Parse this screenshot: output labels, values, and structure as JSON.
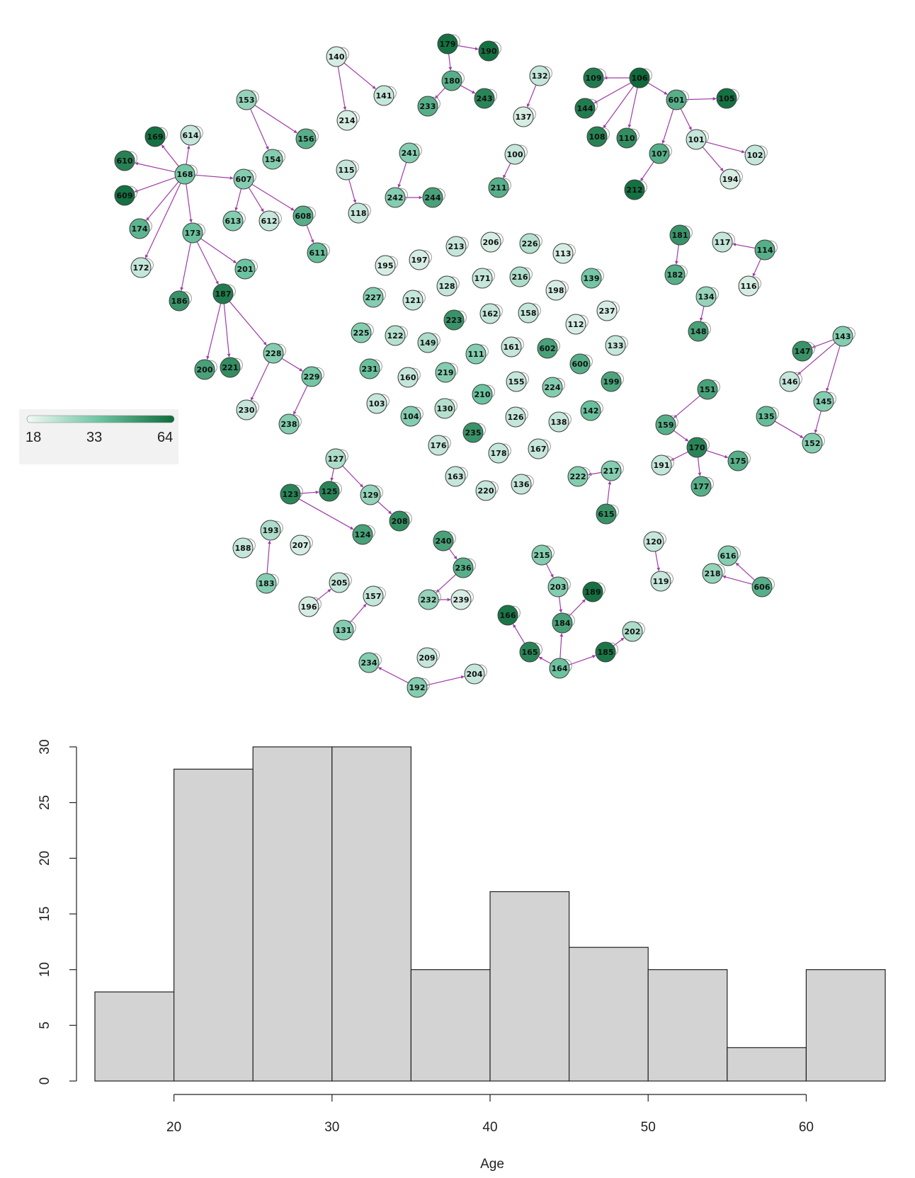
{
  "network": {
    "colors": {
      "low": "#e6f3ef",
      "mid": "#6cc3a0",
      "high": "#0e6b3a",
      "edge": "#a03aa8",
      "node_border": "#3d3d3d"
    },
    "legend": {
      "min": "18",
      "mid": "33",
      "max": "64"
    },
    "nodes": [
      {
        "id": "140",
        "v": 20
      },
      {
        "id": "141",
        "v": 22
      },
      {
        "id": "214",
        "v": 20
      },
      {
        "id": "179",
        "v": 62
      },
      {
        "id": "190",
        "v": 62
      },
      {
        "id": "180",
        "v": 40
      },
      {
        "id": "233",
        "v": 40
      },
      {
        "id": "243",
        "v": 55
      },
      {
        "id": "132",
        "v": 22
      },
      {
        "id": "137",
        "v": 20
      },
      {
        "id": "106",
        "v": 64
      },
      {
        "id": "109",
        "v": 58
      },
      {
        "id": "144",
        "v": 58
      },
      {
        "id": "108",
        "v": 56
      },
      {
        "id": "110",
        "v": 52
      },
      {
        "id": "601",
        "v": 40
      },
      {
        "id": "105",
        "v": 62
      },
      {
        "id": "101",
        "v": 22
      },
      {
        "id": "102",
        "v": 22
      },
      {
        "id": "194",
        "v": 20
      },
      {
        "id": "107",
        "v": 40
      },
      {
        "id": "212",
        "v": 62
      },
      {
        "id": "153",
        "v": 28
      },
      {
        "id": "156",
        "v": 40
      },
      {
        "id": "154",
        "v": 30
      },
      {
        "id": "169",
        "v": 62
      },
      {
        "id": "614",
        "v": 22
      },
      {
        "id": "610",
        "v": 56
      },
      {
        "id": "168",
        "v": 32
      },
      {
        "id": "609",
        "v": 62
      },
      {
        "id": "607",
        "v": 30
      },
      {
        "id": "613",
        "v": 30
      },
      {
        "id": "612",
        "v": 22
      },
      {
        "id": "608",
        "v": 40
      },
      {
        "id": "611",
        "v": 35
      },
      {
        "id": "174",
        "v": 38
      },
      {
        "id": "173",
        "v": 34
      },
      {
        "id": "172",
        "v": 22
      },
      {
        "id": "201",
        "v": 33
      },
      {
        "id": "186",
        "v": 50
      },
      {
        "id": "187",
        "v": 58
      },
      {
        "id": "200",
        "v": 45
      },
      {
        "id": "221",
        "v": 52
      },
      {
        "id": "228",
        "v": 30
      },
      {
        "id": "229",
        "v": 32
      },
      {
        "id": "230",
        "v": 22
      },
      {
        "id": "238",
        "v": 30
      },
      {
        "id": "115",
        "v": 22
      },
      {
        "id": "118",
        "v": 22
      },
      {
        "id": "241",
        "v": 30
      },
      {
        "id": "242",
        "v": 30
      },
      {
        "id": "244",
        "v": 45
      },
      {
        "id": "100",
        "v": 22
      },
      {
        "id": "211",
        "v": 40
      },
      {
        "id": "181",
        "v": 50
      },
      {
        "id": "182",
        "v": 40
      },
      {
        "id": "117",
        "v": 22
      },
      {
        "id": "114",
        "v": 40
      },
      {
        "id": "116",
        "v": 20
      },
      {
        "id": "134",
        "v": 28
      },
      {
        "id": "148",
        "v": 45
      },
      {
        "id": "195",
        "v": 20
      },
      {
        "id": "197",
        "v": 20
      },
      {
        "id": "213",
        "v": 22
      },
      {
        "id": "206",
        "v": 20
      },
      {
        "id": "226",
        "v": 24
      },
      {
        "id": "113",
        "v": 20
      },
      {
        "id": "227",
        "v": 30
      },
      {
        "id": "121",
        "v": 22
      },
      {
        "id": "128",
        "v": 22
      },
      {
        "id": "171",
        "v": 22
      },
      {
        "id": "216",
        "v": 25
      },
      {
        "id": "198",
        "v": 20
      },
      {
        "id": "139",
        "v": 32
      },
      {
        "id": "162",
        "v": 22
      },
      {
        "id": "158",
        "v": 22
      },
      {
        "id": "237",
        "v": 20
      },
      {
        "id": "223",
        "v": 50
      },
      {
        "id": "225",
        "v": 30
      },
      {
        "id": "122",
        "v": 24
      },
      {
        "id": "149",
        "v": 25
      },
      {
        "id": "111",
        "v": 30
      },
      {
        "id": "161",
        "v": 22
      },
      {
        "id": "602",
        "v": 45
      },
      {
        "id": "112",
        "v": 20
      },
      {
        "id": "133",
        "v": 22
      },
      {
        "id": "231",
        "v": 34
      },
      {
        "id": "160",
        "v": 22
      },
      {
        "id": "219",
        "v": 30
      },
      {
        "id": "210",
        "v": 33
      },
      {
        "id": "155",
        "v": 22
      },
      {
        "id": "224",
        "v": 30
      },
      {
        "id": "600",
        "v": 40
      },
      {
        "id": "199",
        "v": 44
      },
      {
        "id": "103",
        "v": 22
      },
      {
        "id": "104",
        "v": 30
      },
      {
        "id": "130",
        "v": 24
      },
      {
        "id": "126",
        "v": 22
      },
      {
        "id": "138",
        "v": 22
      },
      {
        "id": "142",
        "v": 34
      },
      {
        "id": "176",
        "v": 22
      },
      {
        "id": "235",
        "v": 50
      },
      {
        "id": "178",
        "v": 22
      },
      {
        "id": "167",
        "v": 22
      },
      {
        "id": "163",
        "v": 22
      },
      {
        "id": "220",
        "v": 22
      },
      {
        "id": "136",
        "v": 22
      },
      {
        "id": "143",
        "v": 30
      },
      {
        "id": "147",
        "v": 50
      },
      {
        "id": "146",
        "v": 22
      },
      {
        "id": "145",
        "v": 30
      },
      {
        "id": "135",
        "v": 35
      },
      {
        "id": "152",
        "v": 30
      },
      {
        "id": "151",
        "v": 45
      },
      {
        "id": "159",
        "v": 40
      },
      {
        "id": "170",
        "v": 55
      },
      {
        "id": "191",
        "v": 22
      },
      {
        "id": "175",
        "v": 40
      },
      {
        "id": "177",
        "v": 40
      },
      {
        "id": "222",
        "v": 30
      },
      {
        "id": "217",
        "v": 30
      },
      {
        "id": "615",
        "v": 50
      },
      {
        "id": "127",
        "v": 25
      },
      {
        "id": "123",
        "v": 55
      },
      {
        "id": "125",
        "v": 55
      },
      {
        "id": "129",
        "v": 28
      },
      {
        "id": "208",
        "v": 52
      },
      {
        "id": "124",
        "v": 45
      },
      {
        "id": "193",
        "v": 25
      },
      {
        "id": "188",
        "v": 22
      },
      {
        "id": "207",
        "v": 20
      },
      {
        "id": "183",
        "v": 30
      },
      {
        "id": "205",
        "v": 22
      },
      {
        "id": "196",
        "v": 20
      },
      {
        "id": "157",
        "v": 22
      },
      {
        "id": "131",
        "v": 30
      },
      {
        "id": "240",
        "v": 45
      },
      {
        "id": "236",
        "v": 40
      },
      {
        "id": "232",
        "v": 28
      },
      {
        "id": "239",
        "v": 20
      },
      {
        "id": "215",
        "v": 30
      },
      {
        "id": "203",
        "v": 30
      },
      {
        "id": "189",
        "v": 62
      },
      {
        "id": "184",
        "v": 45
      },
      {
        "id": "166",
        "v": 60
      },
      {
        "id": "165",
        "v": 55
      },
      {
        "id": "164",
        "v": 33
      },
      {
        "id": "185",
        "v": 60
      },
      {
        "id": "202",
        "v": 25
      },
      {
        "id": "234",
        "v": 30
      },
      {
        "id": "209",
        "v": 22
      },
      {
        "id": "192",
        "v": 30
      },
      {
        "id": "204",
        "v": 22
      },
      {
        "id": "120",
        "v": 22
      },
      {
        "id": "119",
        "v": 22
      },
      {
        "id": "616",
        "v": 30
      },
      {
        "id": "218",
        "v": 28
      },
      {
        "id": "606",
        "v": 40
      }
    ],
    "edges": [
      [
        "140",
        "141"
      ],
      [
        "140",
        "214"
      ],
      [
        "179",
        "190"
      ],
      [
        "179",
        "180"
      ],
      [
        "180",
        "233"
      ],
      [
        "180",
        "243"
      ],
      [
        "132",
        "137"
      ],
      [
        "106",
        "109"
      ],
      [
        "106",
        "144"
      ],
      [
        "106",
        "108"
      ],
      [
        "106",
        "110"
      ],
      [
        "106",
        "601"
      ],
      [
        "601",
        "105"
      ],
      [
        "601",
        "101"
      ],
      [
        "601",
        "107"
      ],
      [
        "101",
        "102"
      ],
      [
        "101",
        "194"
      ],
      [
        "107",
        "212"
      ],
      [
        "153",
        "156"
      ],
      [
        "153",
        "154"
      ],
      [
        "168",
        "169"
      ],
      [
        "168",
        "614"
      ],
      [
        "168",
        "610"
      ],
      [
        "168",
        "609"
      ],
      [
        "168",
        "607"
      ],
      [
        "168",
        "174"
      ],
      [
        "168",
        "172"
      ],
      [
        "168",
        "173"
      ],
      [
        "607",
        "613"
      ],
      [
        "607",
        "612"
      ],
      [
        "607",
        "608"
      ],
      [
        "608",
        "611"
      ],
      [
        "173",
        "201"
      ],
      [
        "173",
        "186"
      ],
      [
        "173",
        "187"
      ],
      [
        "187",
        "200"
      ],
      [
        "187",
        "221"
      ],
      [
        "187",
        "228"
      ],
      [
        "228",
        "230"
      ],
      [
        "228",
        "229"
      ],
      [
        "229",
        "238"
      ],
      [
        "115",
        "118"
      ],
      [
        "241",
        "242"
      ],
      [
        "242",
        "244"
      ],
      [
        "100",
        "211"
      ],
      [
        "181",
        "182"
      ],
      [
        "114",
        "117"
      ],
      [
        "114",
        "116"
      ],
      [
        "134",
        "148"
      ],
      [
        "143",
        "147"
      ],
      [
        "143",
        "146"
      ],
      [
        "143",
        "145"
      ],
      [
        "145",
        "152"
      ],
      [
        "135",
        "152"
      ],
      [
        "151",
        "159"
      ],
      [
        "159",
        "170"
      ],
      [
        "170",
        "191"
      ],
      [
        "170",
        "175"
      ],
      [
        "170",
        "177"
      ],
      [
        "217",
        "222"
      ],
      [
        "615",
        "217"
      ],
      [
        "127",
        "125"
      ],
      [
        "127",
        "129"
      ],
      [
        "129",
        "208"
      ],
      [
        "123",
        "125"
      ],
      [
        "123",
        "124"
      ],
      [
        "183",
        "193"
      ],
      [
        "196",
        "205"
      ],
      [
        "131",
        "157"
      ],
      [
        "240",
        "236"
      ],
      [
        "236",
        "232"
      ],
      [
        "232",
        "239"
      ],
      [
        "215",
        "203"
      ],
      [
        "203",
        "184"
      ],
      [
        "184",
        "189"
      ],
      [
        "164",
        "184"
      ],
      [
        "164",
        "165"
      ],
      [
        "165",
        "166"
      ],
      [
        "164",
        "185"
      ],
      [
        "185",
        "202"
      ],
      [
        "192",
        "234"
      ],
      [
        "192",
        "204"
      ],
      [
        "120",
        "119"
      ],
      [
        "606",
        "616"
      ],
      [
        "606",
        "218"
      ]
    ]
  },
  "chart_data": {
    "type": "bar",
    "subtype": "histogram",
    "title": "",
    "xlabel": "Age",
    "ylabel": "",
    "bins": [
      [
        15,
        20
      ],
      [
        20,
        25
      ],
      [
        25,
        30
      ],
      [
        30,
        35
      ],
      [
        35,
        40
      ],
      [
        40,
        45
      ],
      [
        45,
        50
      ],
      [
        50,
        55
      ],
      [
        55,
        60
      ],
      [
        60,
        65
      ]
    ],
    "values": [
      8,
      28,
      30,
      30,
      10,
      17,
      12,
      10,
      3,
      10
    ],
    "xlim": [
      15,
      65
    ],
    "ylim": [
      0,
      30
    ],
    "x_ticks": [
      "20",
      "30",
      "40",
      "50",
      "60"
    ],
    "y_ticks": [
      "0",
      "5",
      "10",
      "15",
      "20",
      "25",
      "30"
    ],
    "bar_color": "#d3d3d3",
    "grid": false
  }
}
